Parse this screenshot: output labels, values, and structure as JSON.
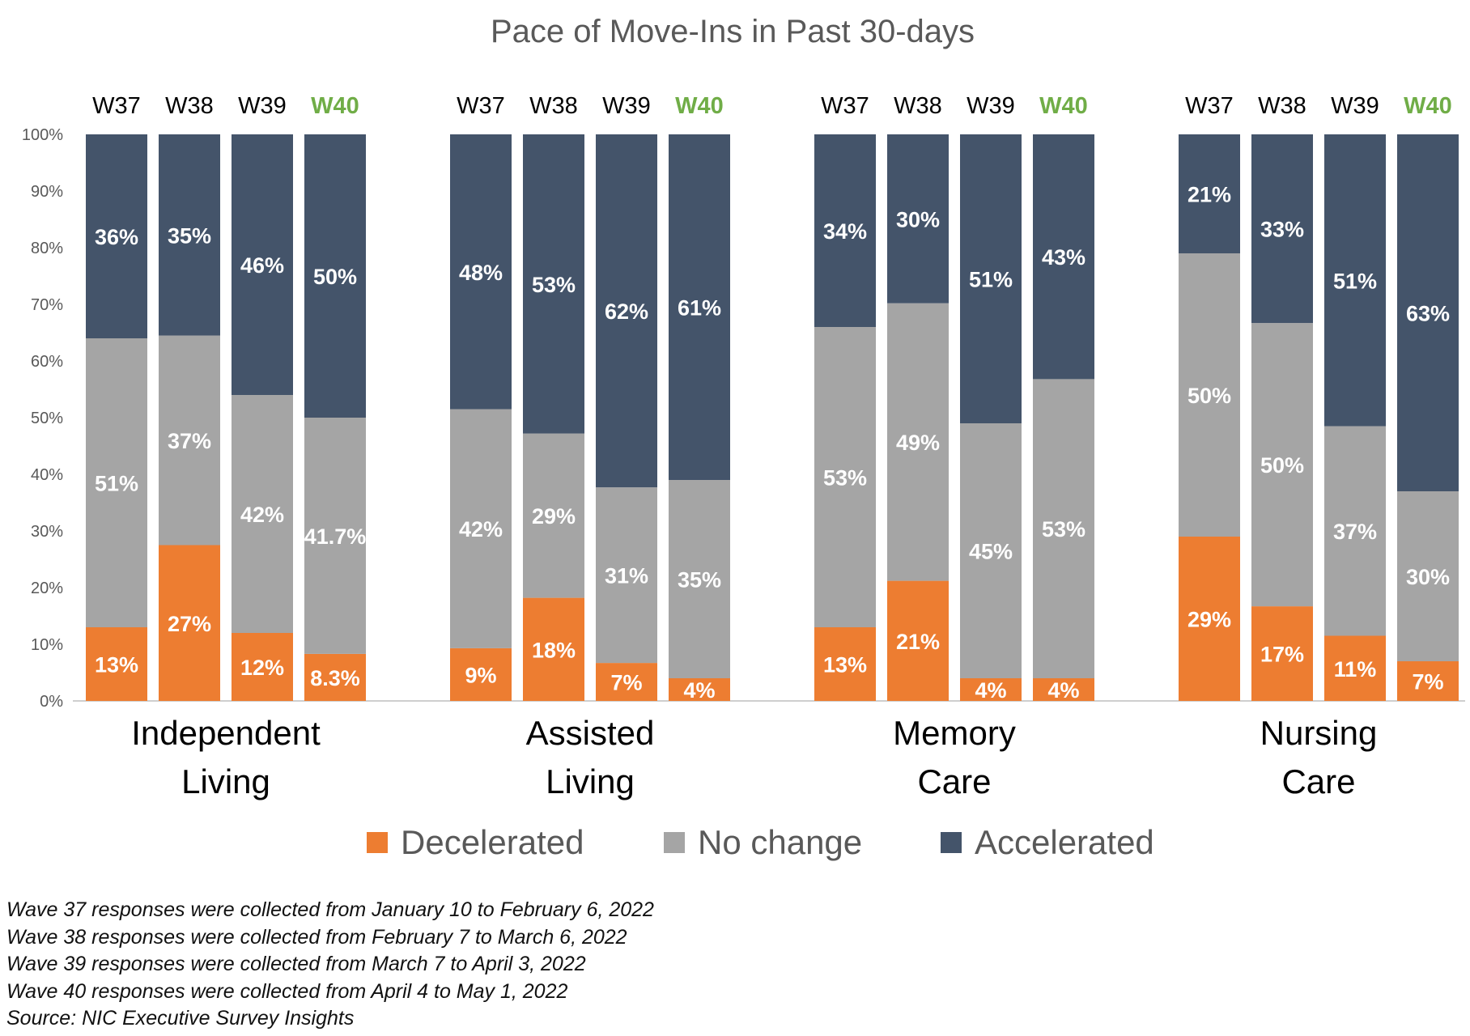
{
  "chart_data": {
    "type": "bar",
    "stacked": true,
    "percent_stacked": true,
    "title": "Pace of Move-Ins in Past 30-days",
    "ylim": [
      0,
      100
    ],
    "y_ticks": [
      "0%",
      "10%",
      "20%",
      "30%",
      "40%",
      "50%",
      "60%",
      "70%",
      "80%",
      "90%",
      "100%"
    ],
    "grid": false,
    "legend_position": "bottom",
    "colors": {
      "Decelerated": "#ED7D31",
      "No change": "#A5A5A5",
      "Accelerated": "#44546A",
      "highlight_wave": "#70AD47"
    },
    "waves": [
      "W37",
      "W38",
      "W39",
      "W40"
    ],
    "highlight_wave": "W40",
    "legend": [
      "Decelerated",
      "No change",
      "Accelerated"
    ],
    "groups": [
      {
        "name_lines": [
          "Independent",
          "Living"
        ],
        "bars": [
          {
            "wave": "W37",
            "values": [
              13,
              51,
              36
            ],
            "labels": [
              "13%",
              "51%",
              "36%"
            ]
          },
          {
            "wave": "W38",
            "values": [
              27.5,
              37,
              35.5
            ],
            "labels": [
              "27%",
              "37%",
              "35%"
            ]
          },
          {
            "wave": "W39",
            "values": [
              12,
              42,
              46
            ],
            "labels": [
              "12%",
              "42%",
              "46%"
            ]
          },
          {
            "wave": "W40",
            "values": [
              8.3,
              41.7,
              50
            ],
            "labels": [
              "8.3%",
              "41.7%",
              "50%"
            ]
          }
        ]
      },
      {
        "name_lines": [
          "Assisted",
          "Living"
        ],
        "bars": [
          {
            "wave": "W37",
            "values": [
              9.3,
              42.2,
              48.5
            ],
            "labels": [
              "9%",
              "42%",
              "48%"
            ]
          },
          {
            "wave": "W38",
            "values": [
              18.2,
              29,
              52.8
            ],
            "labels": [
              "18%",
              "29%",
              "53%"
            ]
          },
          {
            "wave": "W39",
            "values": [
              6.7,
              31,
              62.3
            ],
            "labels": [
              "7%",
              "31%",
              "62%"
            ]
          },
          {
            "wave": "W40",
            "values": [
              4,
              35,
              61
            ],
            "labels": [
              "4%",
              "35%",
              "61%"
            ]
          }
        ]
      },
      {
        "name_lines": [
          "Memory",
          "Care"
        ],
        "bars": [
          {
            "wave": "W37",
            "values": [
              13,
              53,
              34
            ],
            "labels": [
              "13%",
              "53%",
              "34%"
            ]
          },
          {
            "wave": "W38",
            "values": [
              21.2,
              49,
              29.8
            ],
            "labels": [
              "21%",
              "49%",
              "30%"
            ]
          },
          {
            "wave": "W39",
            "values": [
              4,
              45,
              51
            ],
            "labels": [
              "4%",
              "45%",
              "51%"
            ]
          },
          {
            "wave": "W40",
            "values": [
              4,
              52.8,
              43.2
            ],
            "labels": [
              "4%",
              "53%",
              "43%"
            ]
          }
        ]
      },
      {
        "name_lines": [
          "Nursing",
          "Care"
        ],
        "bars": [
          {
            "wave": "W37",
            "values": [
              29,
              50,
              21
            ],
            "labels": [
              "29%",
              "50%",
              "21%"
            ]
          },
          {
            "wave": "W38",
            "values": [
              16.7,
              50,
              33.3
            ],
            "labels": [
              "17%",
              "50%",
              "33%"
            ]
          },
          {
            "wave": "W39",
            "values": [
              11.5,
              37,
              51.5
            ],
            "labels": [
              "11%",
              "37%",
              "51%"
            ]
          },
          {
            "wave": "W40",
            "values": [
              7,
              30,
              63
            ],
            "labels": [
              "7%",
              "30%",
              "63%"
            ]
          }
        ]
      }
    ]
  },
  "footnotes": [
    "Wave 37 responses were collected from January 10 to February 6, 2022",
    "Wave 38 responses were collected from February 7 to March 6, 2022",
    "Wave 39 responses were collected from March 7 to April 3, 2022",
    "Wave 40 responses were collected from April 4 to May 1, 2022",
    "Source: NIC Executive Survey Insights"
  ]
}
